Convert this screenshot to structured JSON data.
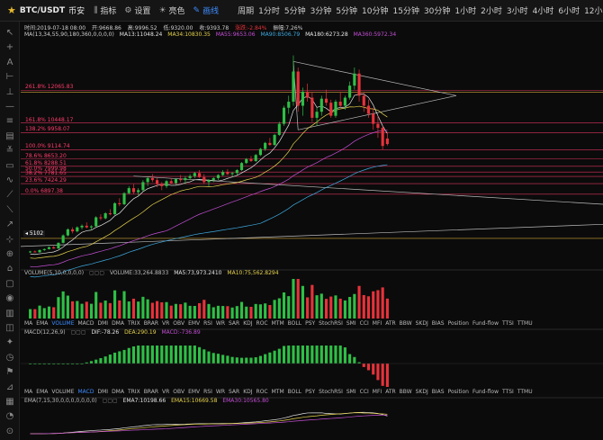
{
  "header": {
    "pair": "BTC/USDT",
    "exchange": "币安",
    "tools": [
      {
        "name": "indicator",
        "label": "指标",
        "icon": "indicator-icon"
      },
      {
        "name": "settings",
        "label": "设置",
        "icon": "gear-icon"
      },
      {
        "name": "theme",
        "label": "亮色",
        "icon": "sun-icon"
      },
      {
        "name": "drawing",
        "label": "画线",
        "icon": "pencil-icon",
        "active": true
      }
    ],
    "periods": [
      "周期",
      "1分时",
      "5分钟",
      "3分钟",
      "5分钟",
      "10分钟",
      "15分钟",
      "30分钟",
      "1小时",
      "2小时",
      "3小时",
      "4小时",
      "6小时",
      "12小时"
    ]
  },
  "info_bar": {
    "time": "时间:2019-07-18 08:00",
    "open": "开:9668.86",
    "high": "高:9996.52",
    "low": "低:9320.00",
    "close": "收:9393.78",
    "change": "涨跌:-2.84%",
    "amplitude": "振幅:7.26%"
  },
  "ma_bar": {
    "label": "MA(13,34,55,90,180,360,0,0,0,0)",
    "ma13": "MA13:11048.24",
    "ma34": "MA34:10830.35",
    "ma55": "MA55:9653.06",
    "ma90": "MA90:8506.79",
    "ma180": "MA180:6273.28",
    "ma360": "MA360:5972.34"
  },
  "fib_labels": [
    {
      "text": "261.8% 12065.83",
      "price": 12065.83
    },
    {
      "text": "161.8% 10448.17",
      "price": 10448.17
    },
    {
      "text": "138.2% 9958.07",
      "price": 9958.07
    },
    {
      "text": "100.0% 9114.74",
      "price": 9114.74
    },
    {
      "text": "78.6% 8653.20",
      "price": 8653.2
    },
    {
      "text": "61.8% 8288.51",
      "price": 8288.51
    },
    {
      "text": "50.0% 7999.98",
      "price": 7999.98
    },
    {
      "text": "38.2% 7781.65",
      "price": 7781.65
    },
    {
      "text": "23.6% 7424.29",
      "price": 7424.29
    },
    {
      "text": "0.0% 6897.38",
      "price": 6897.38
    }
  ],
  "price_marker": "5102",
  "volume": {
    "label": "VOLUME(5,10,0,0,0,0)",
    "value": "VOLUME:33,264.8833",
    "ma5": "MA5:73,973.2410",
    "ma10": "MA10:75,562.8294"
  },
  "indicator_tabs": [
    "MA",
    "EMA",
    "VOLUME",
    "MACD",
    "DMI",
    "DMA",
    "TRIX",
    "BRAR",
    "VR",
    "OBV",
    "EMV",
    "RSI",
    "WR",
    "SAR",
    "KDJ",
    "ROC",
    "MTM",
    "BOLL",
    "PSY",
    "StochRSI",
    "SMI",
    "CCI",
    "MFI",
    "ATR",
    "BBW",
    "SKDJ",
    "BIAS",
    "Position",
    "Fund-flow",
    "TTSI",
    "TTMU"
  ],
  "macd": {
    "label": "MACD(12,26,9)",
    "dif": "DIF:-78.26",
    "dea": "DEA:290.19",
    "macd": "MACD:-736.89"
  },
  "indicator_tabs_2": [
    "MA",
    "EMA",
    "VOLUME",
    "MACD",
    "DMI",
    "DMA",
    "TRIX",
    "BRAR",
    "VR",
    "OBV",
    "EMV",
    "RSI",
    "WR",
    "SAR",
    "KDJ",
    "ROC",
    "MTM",
    "BOLL",
    "PSY",
    "StochRSI",
    "SMI",
    "CCI",
    "MFI",
    "ATR",
    "BBW",
    "SKDJ",
    "BIAS",
    "Position",
    "Fund-flow",
    "TTSI",
    "TTMU"
  ],
  "ema": {
    "label": "EMA(7,15,30,0,0,0,0,0,0,0)",
    "ema7": "EMA7:10198.66",
    "ema15": "EMA15:10669.58",
    "ema30": "EMA30:10565.80"
  },
  "colors": {
    "up": "#2fbf46",
    "down": "#e8323a",
    "accent": "#3d8cff",
    "fib": "#ff3b6b"
  },
  "chart_data": {
    "type": "candlestick",
    "interval": "1d",
    "candles": [
      [
        4020,
        4080,
        3980,
        4050
      ],
      [
        4050,
        4100,
        4000,
        4010
      ],
      [
        4010,
        4150,
        3990,
        4120
      ],
      [
        4120,
        4200,
        4080,
        4170
      ],
      [
        4170,
        4300,
        4150,
        4260
      ],
      [
        4260,
        4320,
        4180,
        4200
      ],
      [
        4200,
        4500,
        4180,
        4480
      ],
      [
        4480,
        4900,
        4450,
        4850
      ],
      [
        4850,
        5200,
        4800,
        5150
      ],
      [
        5150,
        5250,
        4950,
        5050
      ],
      [
        5050,
        5300,
        5000,
        5250
      ],
      [
        5250,
        5400,
        5150,
        5330
      ],
      [
        5330,
        5500,
        5200,
        5250
      ],
      [
        5250,
        5350,
        5100,
        5300
      ],
      [
        5300,
        5800,
        5280,
        5750
      ],
      [
        5750,
        5900,
        5600,
        5700
      ],
      [
        5700,
        6000,
        5650,
        5950
      ],
      [
        5950,
        6150,
        5850,
        5900
      ],
      [
        5900,
        6500,
        5880,
        6450
      ],
      [
        6450,
        6700,
        6300,
        6400
      ],
      [
        6400,
        7000,
        6350,
        6950
      ],
      [
        6950,
        7300,
        6900,
        7200
      ],
      [
        7200,
        7400,
        6900,
        7000
      ],
      [
        7000,
        7200,
        6800,
        7100
      ],
      [
        7100,
        7600,
        7050,
        7500
      ],
      [
        7500,
        7800,
        7300,
        7700
      ],
      [
        7700,
        7900,
        7500,
        7600
      ],
      [
        7600,
        7700,
        7250,
        7400
      ],
      [
        7400,
        7500,
        7100,
        7300
      ],
      [
        7300,
        7600,
        7200,
        7550
      ],
      [
        7550,
        7700,
        7400,
        7450
      ],
      [
        7450,
        7700,
        7350,
        7650
      ],
      [
        7650,
        7850,
        7500,
        7600
      ],
      [
        7600,
        7800,
        7400,
        7700
      ],
      [
        7700,
        7900,
        7600,
        7800
      ],
      [
        7800,
        8000,
        7700,
        7950
      ],
      [
        7950,
        8100,
        7700,
        7750
      ],
      [
        7750,
        7900,
        7400,
        7500
      ],
      [
        7500,
        7650,
        7300,
        7600
      ],
      [
        7600,
        7750,
        7500,
        7700
      ],
      [
        7700,
        7900,
        7600,
        7850
      ],
      [
        7850,
        8100,
        7800,
        8000
      ],
      [
        8000,
        8150,
        7850,
        7900
      ],
      [
        7900,
        8000,
        7750,
        7950
      ],
      [
        7950,
        8150,
        7850,
        8100
      ],
      [
        8100,
        8500,
        8050,
        8450
      ],
      [
        8450,
        8700,
        8400,
        8650
      ],
      [
        8650,
        8800,
        8500,
        8550
      ],
      [
        8550,
        8900,
        8500,
        8850
      ],
      [
        8850,
        9200,
        8800,
        9150
      ],
      [
        9150,
        9500,
        9050,
        9450
      ],
      [
        9450,
        9700,
        9300,
        9350
      ],
      [
        9350,
        9900,
        9300,
        9850
      ],
      [
        9850,
        10500,
        9800,
        10400
      ],
      [
        10400,
        11300,
        10300,
        11200
      ],
      [
        11200,
        11800,
        10900,
        11500
      ],
      [
        11500,
        13800,
        11300,
        13000
      ],
      [
        13000,
        13200,
        11000,
        11300
      ],
      [
        11300,
        12200,
        10800,
        12000
      ],
      [
        12000,
        12400,
        11500,
        11700
      ],
      [
        11700,
        12000,
        10500,
        10700
      ],
      [
        10700,
        11200,
        10300,
        11000
      ],
      [
        11000,
        11800,
        10800,
        11650
      ],
      [
        11650,
        12100,
        11300,
        11450
      ],
      [
        11450,
        11600,
        10700,
        10800
      ],
      [
        10800,
        11600,
        10700,
        11500
      ],
      [
        11500,
        12000,
        11200,
        11300
      ],
      [
        11300,
        11800,
        11100,
        11700
      ],
      [
        11700,
        12500,
        11600,
        12300
      ],
      [
        12300,
        13200,
        12100,
        12900
      ],
      [
        12900,
        13100,
        11500,
        11800
      ],
      [
        11800,
        12000,
        11000,
        11300
      ],
      [
        11300,
        11600,
        10700,
        10900
      ],
      [
        10900,
        11200,
        10100,
        10400
      ],
      [
        10400,
        10800,
        9700,
        10200
      ],
      [
        10200,
        10300,
        9100,
        9300
      ],
      [
        9670,
        9996,
        9320,
        9394
      ]
    ]
  }
}
